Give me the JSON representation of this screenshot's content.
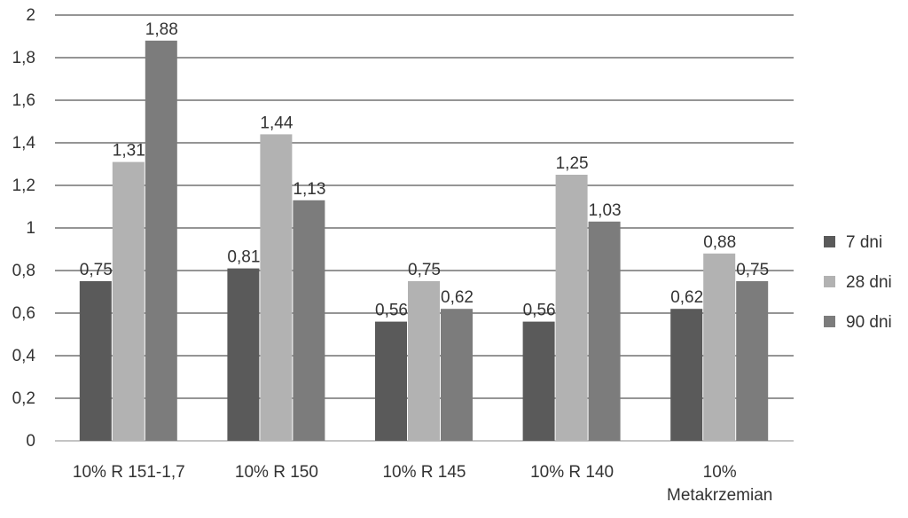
{
  "chart_data": {
    "type": "bar",
    "categories": [
      "10% R 151-1,7",
      "10% R 150",
      "10% R 145",
      "10% R 140",
      "10% Metakrzemian"
    ],
    "series": [
      {
        "name": "7 dni",
        "values": [
          0.75,
          0.81,
          0.56,
          0.56,
          0.62
        ],
        "labels": [
          "0,75",
          "0,81",
          "0,56",
          "0,56",
          "0,62"
        ],
        "color": "#5a5a5a"
      },
      {
        "name": "28 dni",
        "values": [
          1.31,
          1.44,
          0.75,
          1.25,
          0.88
        ],
        "labels": [
          "1,31",
          "1,44",
          "0,75",
          "1,25",
          "0,88"
        ],
        "color": "#b2b2b2"
      },
      {
        "name": "90 dni",
        "values": [
          1.88,
          1.13,
          0.62,
          1.03,
          0.75
        ],
        "labels": [
          "1,88",
          "1,13",
          "0,62",
          "1,03",
          "0,75"
        ],
        "color": "#7c7c7c"
      }
    ],
    "yticks": [
      {
        "value": 0,
        "label": "0"
      },
      {
        "value": 0.2,
        "label": "0,2"
      },
      {
        "value": 0.4,
        "label": "0,4"
      },
      {
        "value": 0.6,
        "label": "0,6"
      },
      {
        "value": 0.8,
        "label": "0,8"
      },
      {
        "value": 1,
        "label": "1"
      },
      {
        "value": 1.2,
        "label": "1,2"
      },
      {
        "value": 1.4,
        "label": "1,4"
      },
      {
        "value": 1.6,
        "label": "1,6"
      },
      {
        "value": 1.8,
        "label": "1,8"
      },
      {
        "value": 2,
        "label": "2"
      }
    ],
    "ylim": [
      0,
      2
    ],
    "grid": true,
    "legend_position": "right",
    "title": "",
    "xlabel": "",
    "ylabel": ""
  }
}
